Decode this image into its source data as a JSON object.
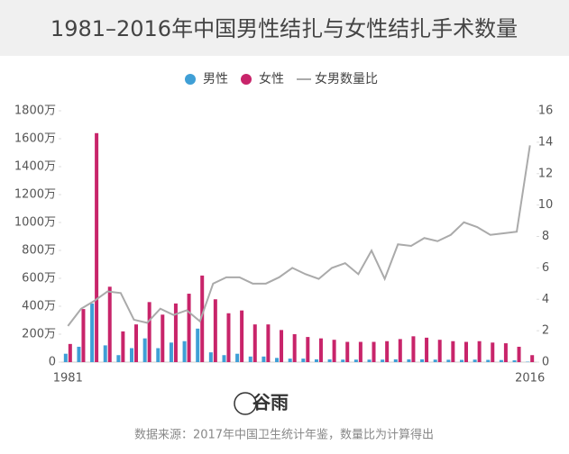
{
  "chart_data": {
    "type": "bar",
    "title": "1981–2016年中国男性结扎与女性结扎手术数量",
    "source": "数据来源：2017年中国卫生统计年鉴，数量比为计算得出",
    "logo": "谷雨",
    "categories": [
      "1981",
      null,
      null,
      null,
      null,
      null,
      null,
      null,
      null,
      null,
      null,
      null,
      null,
      null,
      null,
      null,
      null,
      null,
      null,
      null,
      null,
      null,
      null,
      null,
      null,
      null,
      null,
      null,
      null,
      null,
      null,
      null,
      null,
      null,
      null,
      "2016"
    ],
    "series": [
      {
        "name": "男性",
        "color": "#3f9fd6",
        "values": [
          60,
          110,
          420,
          120,
          50,
          100,
          170,
          100,
          140,
          150,
          240,
          70,
          50,
          60,
          40,
          40,
          30,
          25,
          25,
          20,
          20,
          18,
          18,
          18,
          18,
          20,
          20,
          20,
          18,
          17,
          16,
          18,
          16,
          15,
          13,
          3
        ]
      },
      {
        "name": "女性",
        "color": "#c8246a",
        "values": [
          130,
          380,
          1640,
          540,
          220,
          270,
          430,
          340,
          420,
          490,
          620,
          450,
          350,
          370,
          270,
          270,
          230,
          200,
          180,
          170,
          160,
          145,
          145,
          145,
          150,
          165,
          185,
          175,
          160,
          150,
          145,
          150,
          140,
          135,
          110,
          50
        ]
      },
      {
        "name": "女男数量比",
        "color": "#aaaaaa",
        "type": "line",
        "axis": "y2",
        "values": [
          2.3,
          3.4,
          3.9,
          4.5,
          4.4,
          2.7,
          2.5,
          3.4,
          3.0,
          3.3,
          2.6,
          5.0,
          5.4,
          5.4,
          5.0,
          5.0,
          5.4,
          6.0,
          5.6,
          5.3,
          6.0,
          6.3,
          5.6,
          7.1,
          5.3,
          7.5,
          7.4,
          7.9,
          7.7,
          8.1,
          8.9,
          8.6,
          8.1,
          8.2,
          8.3,
          13.8
        ]
      }
    ],
    "ylim": [
      0,
      1800
    ],
    "yticks": [
      0,
      {
        "value": 200,
        "label": "200万"
      },
      {
        "value": 400,
        "label": "400万"
      },
      {
        "value": 600,
        "label": "600万"
      },
      {
        "value": 800,
        "label": "800万"
      },
      {
        "value": 1000,
        "label": "1000万"
      },
      {
        "value": 1200,
        "label": "1200万"
      },
      {
        "value": 1400,
        "label": "1400万"
      },
      {
        "value": 1600,
        "label": "1600万"
      },
      {
        "value": 1800,
        "label": "1800万"
      }
    ],
    "y2lim": [
      0,
      16
    ],
    "y2ticks": [
      0,
      2,
      4,
      6,
      8,
      10,
      12,
      14,
      16
    ]
  }
}
